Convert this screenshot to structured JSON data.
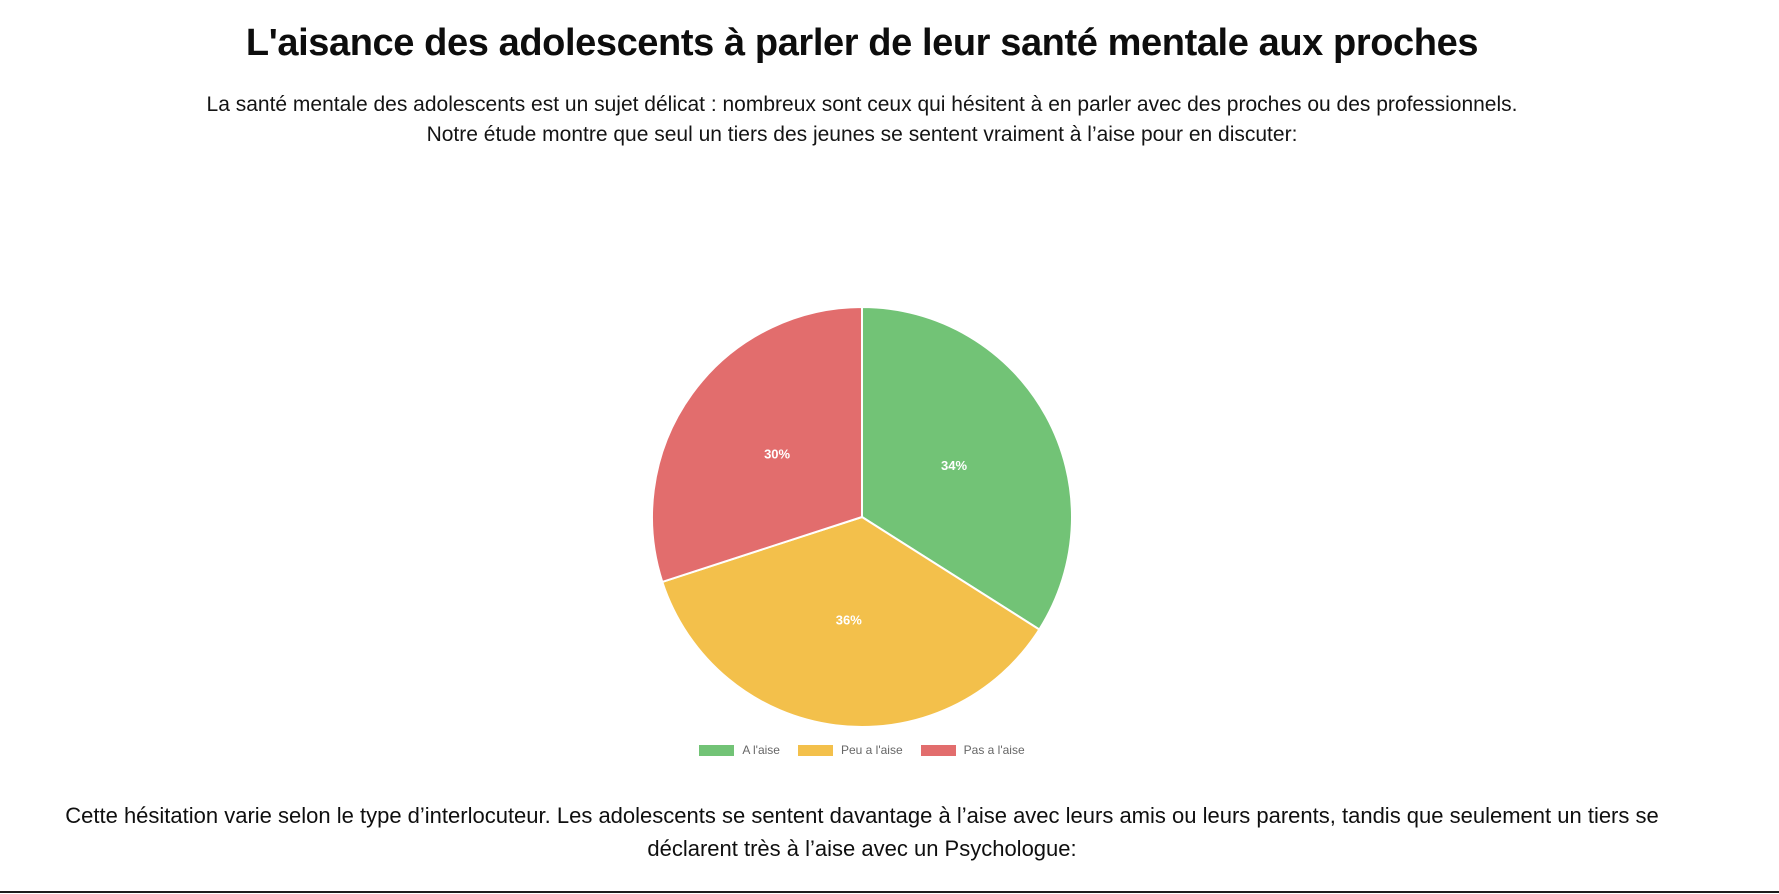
{
  "page": {
    "title": "L'aisance des adolescents à parler de leur santé mentale aux proches",
    "intro": "La santé mentale des adolescents est un sujet délicat : nombreux sont ceux qui hésitent à en parler avec des proches ou des professionnels. Notre étude montre que seul un tiers des jeunes se sentent vraiment à l’aise pour en discuter:",
    "outro": "Cette hésitation varie selon le type d’interlocuteur. Les adolescents se sentent davantage à l’aise avec leurs amis ou leurs parents, tandis que seulement un tiers se déclarent très à l’aise avec un Psychologue:"
  },
  "chart_data": {
    "type": "pie",
    "categories": [
      "A l'aise",
      "Peu a l'aise",
      "Pas a l'aise"
    ],
    "values": [
      34,
      36,
      30
    ],
    "data_labels": [
      "34%",
      "36%",
      "30%"
    ],
    "unit": "%",
    "colors": [
      "#72c376",
      "#f3c04b",
      "#e26d6d"
    ],
    "slice_border_color": "#ffffff",
    "label_color": "#ffffff",
    "legend_text_color": "#666666",
    "legend_position": "bottom",
    "start_angle_deg": 0,
    "direction": "clockwise",
    "title": ""
  }
}
